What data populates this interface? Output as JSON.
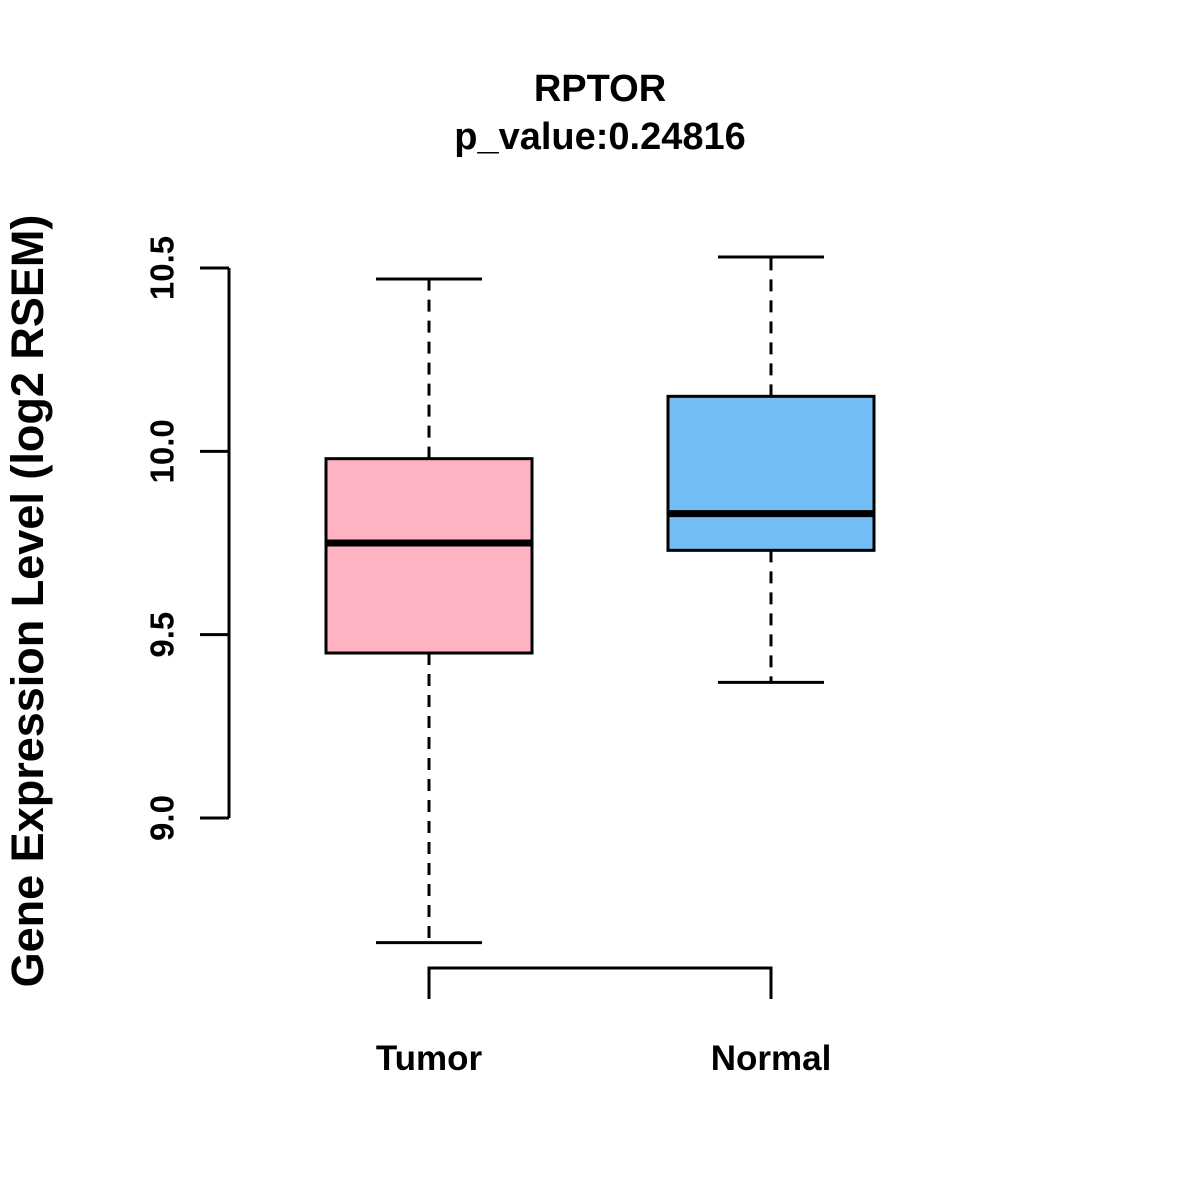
{
  "header": {
    "title": "RPTOR",
    "subtitle": "p_value:0.24816"
  },
  "chart_data": {
    "type": "boxplot",
    "title": "RPTOR",
    "subtitle": "p_value:0.24816",
    "ylabel": "Gene Expression Level (log2 RSEM)",
    "xlabel": "",
    "categories": [
      "Tumor",
      "Normal"
    ],
    "series": [
      {
        "name": "Tumor",
        "lower_whisker": 8.66,
        "q1": 9.45,
        "median": 9.75,
        "q3": 9.98,
        "upper_whisker": 10.47,
        "fill": "#FFB3C2"
      },
      {
        "name": "Normal",
        "lower_whisker": 9.37,
        "q1": 9.73,
        "median": 9.83,
        "q3": 10.15,
        "upper_whisker": 10.53,
        "fill": "#73BDF5"
      }
    ],
    "yticks": [
      "9.0",
      "9.5",
      "10.0",
      "10.5"
    ],
    "ytick_values": [
      9.0,
      9.5,
      10.0,
      10.5
    ],
    "axis_range": [
      9.0,
      10.5
    ],
    "grid": false,
    "legend": "none",
    "whisker_style": "dashed",
    "stroke_color": "#000000",
    "background": "#FFFFFF"
  }
}
